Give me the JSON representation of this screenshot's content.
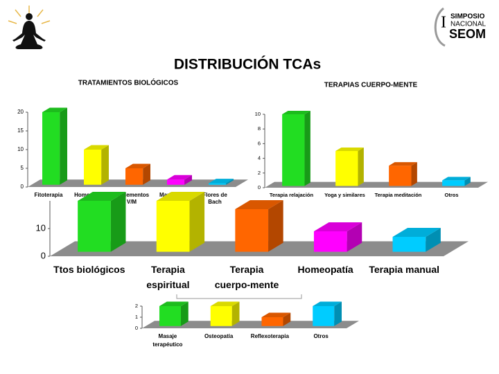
{
  "title": "DISTRIBUCIÓN TCAs",
  "logo": {
    "numeral": "I",
    "line1": "SIMPOSIO",
    "line2": "NACIONAL",
    "line3": "SEOM"
  },
  "chart_data": [
    {
      "type": "bar",
      "title": "TRATAMIENTOS BIOLÓGICOS",
      "categories": [
        "Fitoterapia",
        "Homeopatía",
        "Suplementos V/M",
        "Marihuana",
        "Flores de Bach"
      ],
      "values": [
        20,
        10,
        5,
        2,
        1
      ],
      "colors": [
        "#22dd22",
        "#ffff00",
        "#ff6600",
        "#ff00ff",
        "#00ccff"
      ],
      "ylim": [
        0,
        20
      ],
      "yticks": [
        0,
        5,
        10,
        15,
        20
      ]
    },
    {
      "type": "bar",
      "title": "TERAPIAS CUERPO-MENTE",
      "categories": [
        "Terapia relajación",
        "Yoga y similares",
        "Terapia meditación",
        "Otros"
      ],
      "values": [
        10,
        5,
        3,
        1
      ],
      "colors": [
        "#22dd22",
        "#ffff00",
        "#ff6600",
        "#00ccff"
      ],
      "ylim": [
        0,
        10
      ],
      "yticks": [
        0,
        2,
        4,
        6,
        8,
        10
      ]
    },
    {
      "type": "bar",
      "categories": [
        "Ttos biológicos",
        "Terapia espiritual",
        "Terapia cuerpo-mente",
        "Homeopatía",
        "Terapia manual"
      ],
      "values": [
        20,
        20,
        17,
        9,
        7
      ],
      "colors": [
        "#22dd22",
        "#ffff00",
        "#ff6600",
        "#ff00ff",
        "#00ccff"
      ],
      "ylim": [
        0,
        20
      ],
      "yticks": [
        0,
        10
      ]
    },
    {
      "type": "bar",
      "categories": [
        "Masaje terapéutico",
        "Osteopatía",
        "Reflexoterapia",
        "Otros"
      ],
      "values": [
        2,
        2,
        1,
        2
      ],
      "colors": [
        "#22dd22",
        "#ffff00",
        "#ff6600",
        "#00ccff"
      ],
      "ylim": [
        0,
        2
      ],
      "yticks": [
        0,
        1,
        2
      ]
    }
  ]
}
